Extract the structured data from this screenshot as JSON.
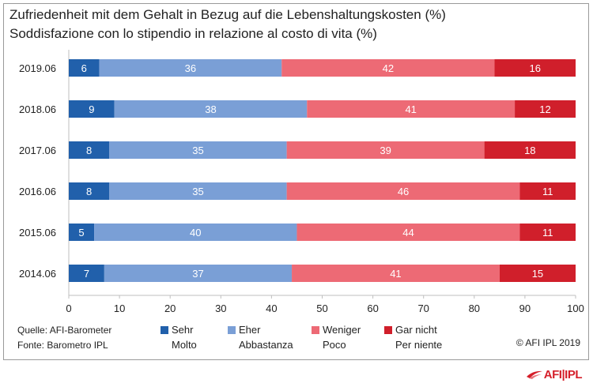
{
  "title_de": "Zufriedenheit mit dem Gehalt in Bezug auf die Lebenshaltungskosten (%)",
  "title_it": "Soddisfazione con lo stipendio in relazione al costo di vita (%)",
  "source_de": "Quelle: AFI-Barometer",
  "source_it": "Fonte: Barometro IPL",
  "copyright": "© AFI IPL 2019",
  "logo_text": "AFI|IPL",
  "colors": {
    "sehr": "#2160ab",
    "eher": "#7a9fd6",
    "weniger": "#ed6a75",
    "gar_nicht": "#d01f2b",
    "frame": "#9a9a9a",
    "axis": "#bfbfbf"
  },
  "legend": [
    {
      "de": "Sehr",
      "it": "Molto",
      "color": "#2160ab"
    },
    {
      "de": "Eher",
      "it": "Abbastanza",
      "color": "#7a9fd6"
    },
    {
      "de": "Weniger",
      "it": "Poco",
      "color": "#ed6a75"
    },
    {
      "de": "Gar nicht",
      "it": "Per niente",
      "color": "#d01f2b"
    }
  ],
  "chart_data": {
    "type": "bar",
    "orientation": "horizontal",
    "stacked": true,
    "title": "Zufriedenheit mit dem Gehalt in Bezug auf die Lebenshaltungskosten (%)",
    "subtitle": "Soddisfazione con lo stipendio in relazione al costo di vita (%)",
    "categories": [
      "2019.06",
      "2018.06",
      "2017.06",
      "2016.06",
      "2015.06",
      "2014.06"
    ],
    "series": [
      {
        "name": "Sehr / Molto",
        "values": [
          6,
          9,
          8,
          8,
          5,
          7
        ]
      },
      {
        "name": "Eher / Abbastanza",
        "values": [
          36,
          38,
          35,
          35,
          40,
          37
        ]
      },
      {
        "name": "Weniger / Poco",
        "values": [
          42,
          41,
          39,
          46,
          44,
          41
        ]
      },
      {
        "name": "Gar nicht / Per niente",
        "values": [
          16,
          12,
          18,
          11,
          11,
          15
        ]
      }
    ],
    "xlim": [
      0,
      100
    ],
    "xticks": [
      0,
      10,
      20,
      30,
      40,
      50,
      60,
      70,
      80,
      90,
      100
    ],
    "grid": false,
    "legend_position": "bottom"
  }
}
